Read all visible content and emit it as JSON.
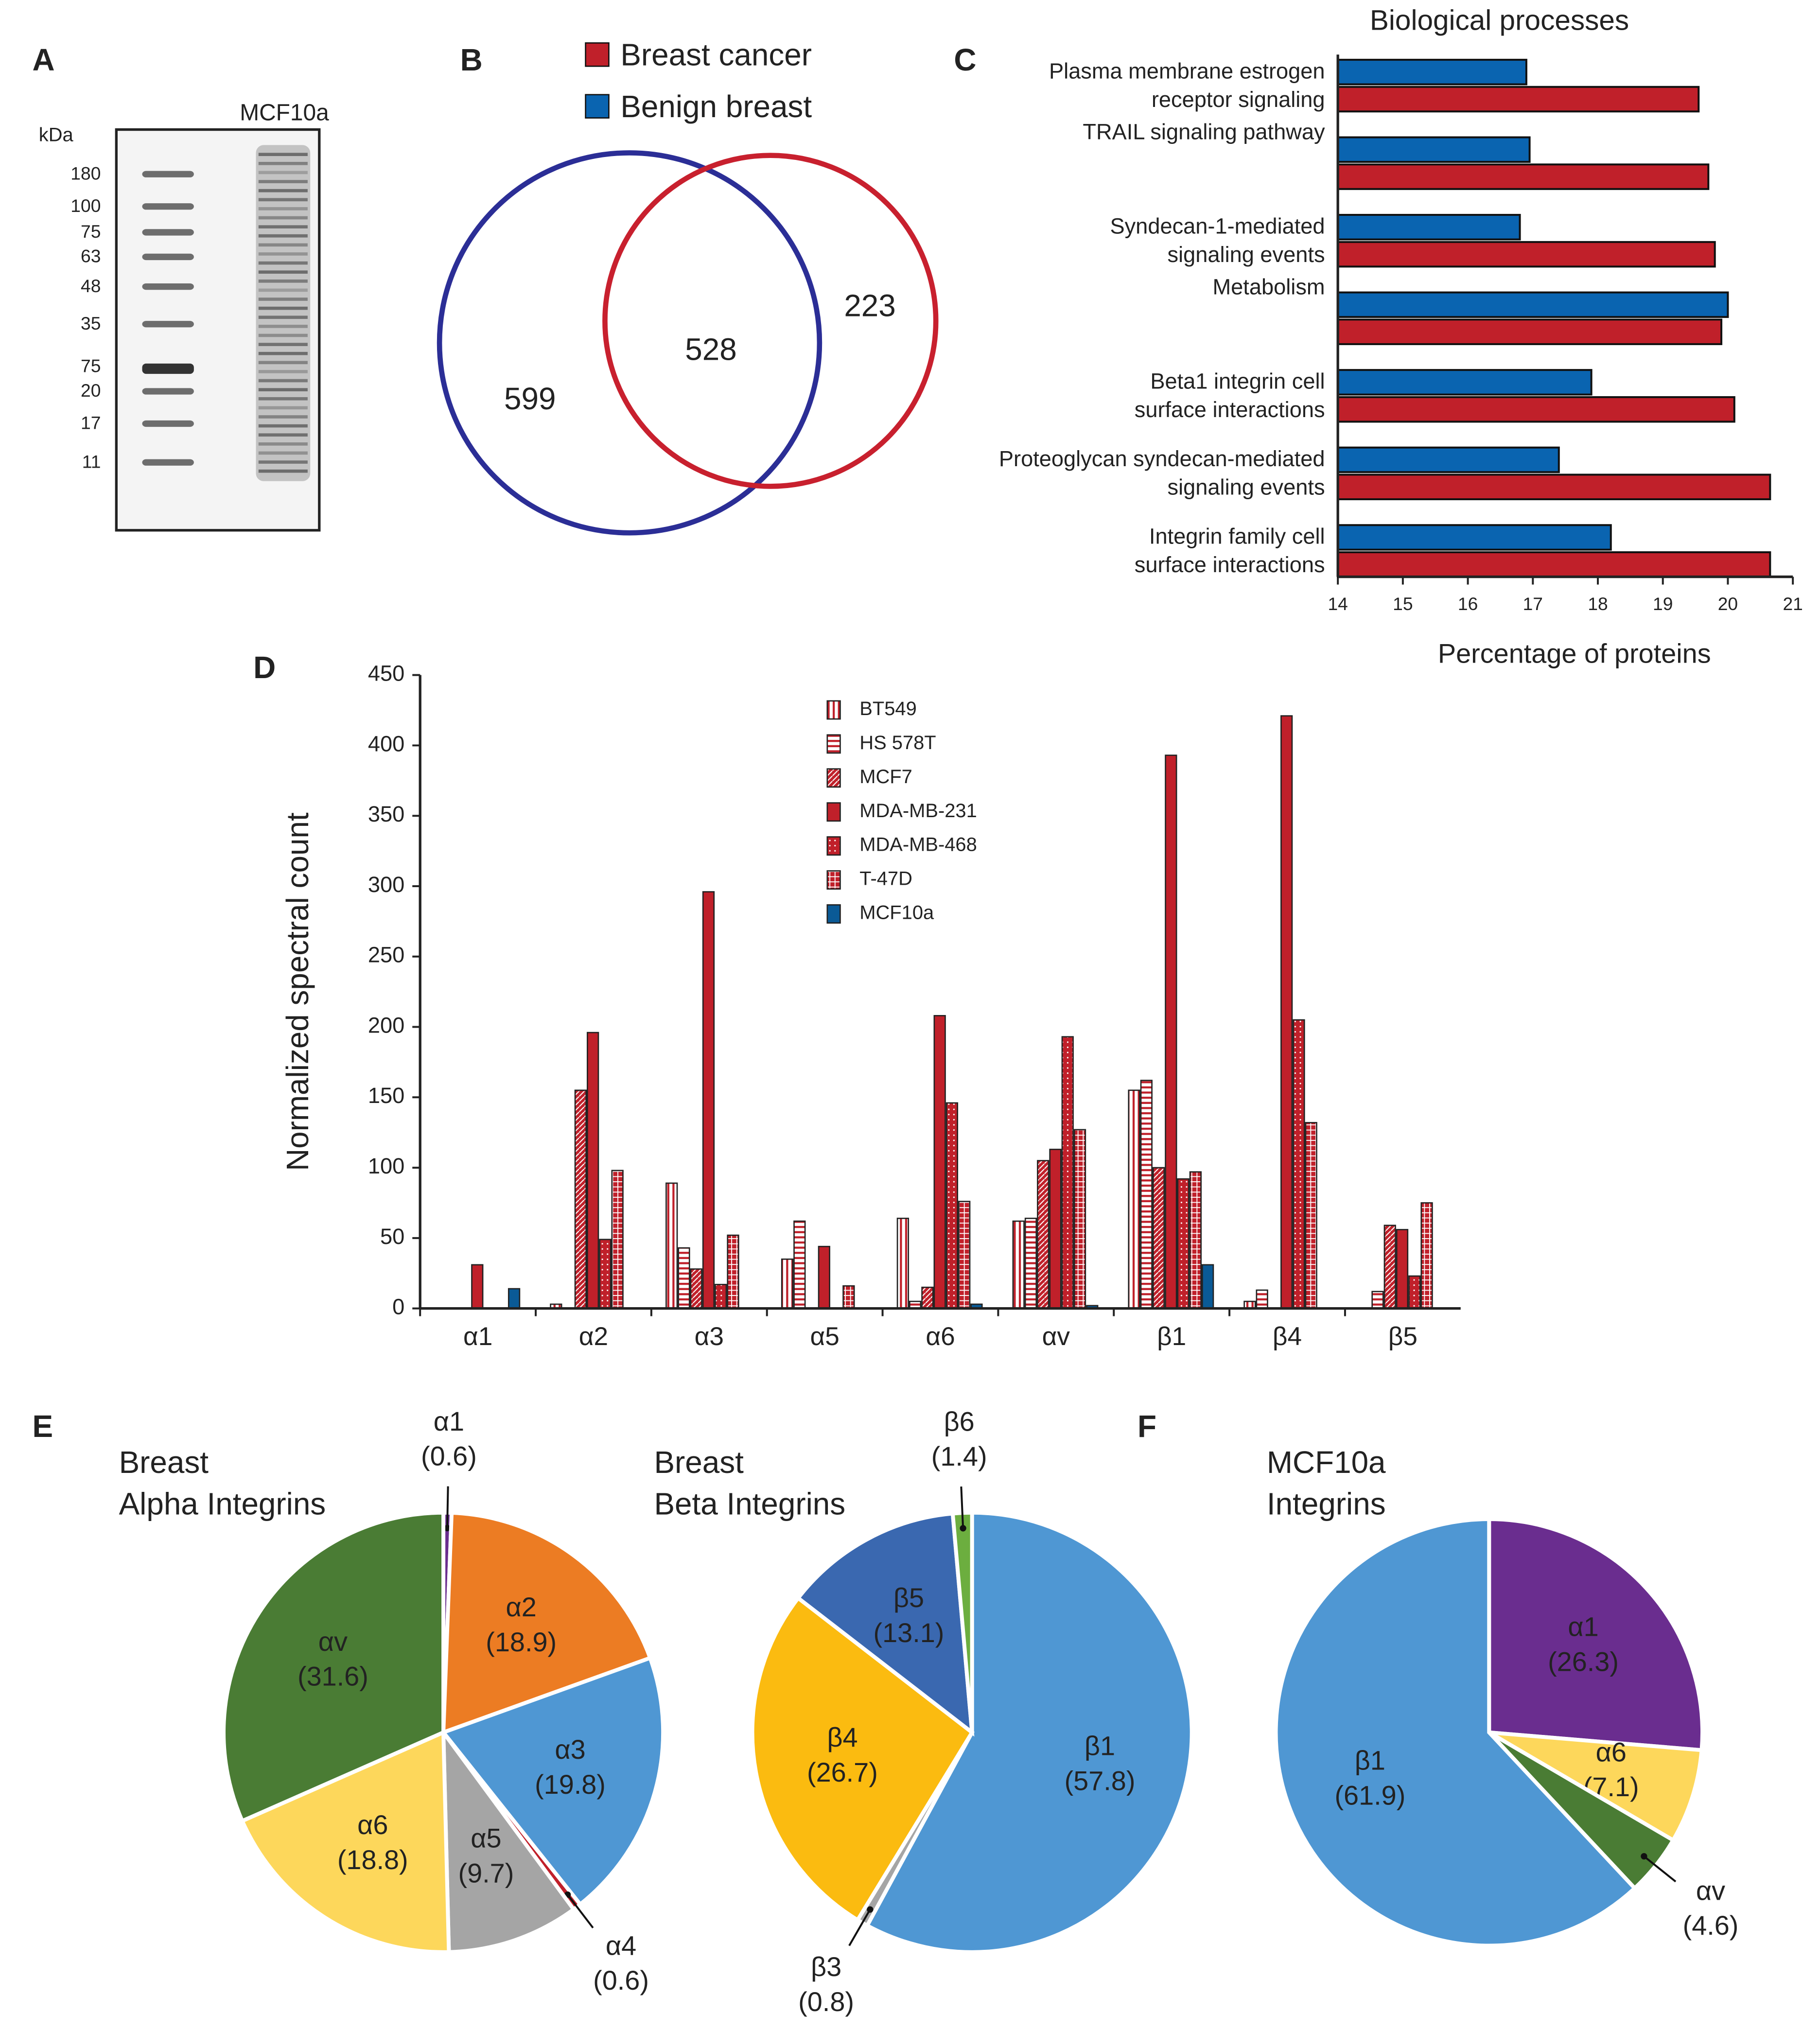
{
  "chart_data": [
    {
      "type": "gel",
      "panel": "A",
      "unit": "kDa",
      "lane_label": "MCF10a",
      "markers": [
        180,
        100,
        75,
        63,
        48,
        35,
        75,
        20,
        17,
        11
      ]
    },
    {
      "type": "venn",
      "panel": "B",
      "counts": [
        599,
        528,
        223
      ],
      "outlines": [
        "#2b2e96",
        "#c8202e"
      ]
    },
    {
      "type": "hbar",
      "panel": "C",
      "title": "Biological processes",
      "xlabel": "Percentage of proteins",
      "categories": [
        [
          "Plasma membrane estrogen",
          "receptor signaling"
        ],
        [
          "TRAIL signaling pathway"
        ],
        [
          "Syndecan-1-mediated",
          "signaling events"
        ],
        [
          "Metabolism"
        ],
        [
          "Beta1 integrin cell",
          "surface interactions"
        ],
        [
          "Proteoglycan syndecan-mediated",
          "signaling events"
        ],
        [
          "Integrin family cell",
          "surface interactions"
        ]
      ],
      "series": [
        {
          "name": "Benign breast",
          "color": "#0a64b0",
          "values": [
            16.9,
            16.95,
            16.8,
            20.0,
            17.9,
            17.4,
            18.2
          ]
        },
        {
          "name": "Breast cancer",
          "color": "#c0202a",
          "values": [
            19.55,
            19.7,
            19.8,
            19.9,
            20.1,
            20.65,
            20.65
          ]
        }
      ],
      "xlim": [
        14,
        21
      ],
      "xticks": [
        14,
        15,
        16,
        17,
        18,
        19,
        20,
        21
      ]
    },
    {
      "type": "bar",
      "panel": "D",
      "ylabel": "Normalized spectral count",
      "categories": [
        "α1",
        "α2",
        "α3",
        "α5",
        "α6",
        "αv",
        "β1",
        "β4",
        "β5"
      ],
      "series": [
        {
          "name": "BT549",
          "color": "#c0202a",
          "pattern": "vertical",
          "values": [
            0,
            3,
            89,
            35,
            64,
            62,
            155,
            5,
            0
          ]
        },
        {
          "name": "HS 578T",
          "color": "#c0202a",
          "pattern": "horizontal",
          "values": [
            0,
            0,
            43,
            62,
            5,
            64,
            162,
            13,
            12
          ]
        },
        {
          "name": "MCF7",
          "color": "#c0202a",
          "pattern": "diagonal",
          "values": [
            0,
            155,
            28,
            0,
            15,
            105,
            100,
            0,
            59
          ]
        },
        {
          "name": "MDA-MB-231",
          "color": "#c0202a",
          "pattern": "solid",
          "values": [
            31,
            196,
            296,
            44,
            208,
            113,
            393,
            421,
            56
          ]
        },
        {
          "name": "MDA-MB-468",
          "color": "#c0202a",
          "pattern": "dots",
          "values": [
            0,
            49,
            17,
            0,
            146,
            193,
            92,
            205,
            23
          ]
        },
        {
          "name": "T-47D",
          "color": "#c0202a",
          "pattern": "cross",
          "values": [
            0,
            98,
            52,
            16,
            76,
            127,
            97,
            132,
            75
          ]
        },
        {
          "name": "MCF10a",
          "color": "#0a5a96",
          "pattern": "solid",
          "values": [
            14,
            0,
            0,
            0,
            3,
            2,
            31,
            0,
            0
          ]
        }
      ],
      "ylim": [
        0,
        450
      ],
      "yticks": [
        0,
        50,
        100,
        150,
        200,
        250,
        300,
        350,
        400,
        450
      ]
    },
    {
      "type": "pie",
      "panel": "E",
      "title": [
        "Breast",
        "Alpha Integrins"
      ],
      "labels": [
        "α1",
        "α2",
        "α3",
        "α4",
        "α5",
        "α6",
        "αv"
      ],
      "values": [
        0.6,
        18.9,
        19.8,
        0.6,
        9.7,
        18.8,
        31.6
      ],
      "value_labels": [
        "(0.6)",
        "(18.9)",
        "(19.8)",
        "(0.6)",
        "(9.7)",
        "(18.8)",
        "(31.6)"
      ],
      "colors": [
        "#6a2d8f",
        "#ec7c23",
        "#4f97d3",
        "#c0202a",
        "#a5a5a5",
        "#fdd75b",
        "#4a7c34"
      ]
    },
    {
      "type": "pie",
      "title": [
        "Breast",
        "Beta Integrins"
      ],
      "labels": [
        "β1",
        "β3",
        "β4",
        "β5",
        "β6"
      ],
      "values": [
        57.8,
        0.8,
        26.7,
        13.1,
        1.4
      ],
      "value_labels": [
        "(57.8)",
        "(0.8)",
        "(26.7)",
        "(13.1)",
        "(1.4)"
      ],
      "colors": [
        "#4f97d3",
        "#a5a5a5",
        "#fbbb10",
        "#3a68b0",
        "#6cae3f"
      ]
    },
    {
      "type": "pie",
      "panel": "F",
      "title": [
        "MCF10a",
        "Integrins"
      ],
      "labels": [
        "α1",
        "α6",
        "αv",
        "β1"
      ],
      "values": [
        26.3,
        7.1,
        4.6,
        61.9
      ],
      "value_labels": [
        "(26.3)",
        "(7.1)",
        "(4.6)",
        "(61.9)"
      ],
      "colors": [
        "#6a2d8f",
        "#fdd75b",
        "#4a7c34",
        "#4f97d3"
      ]
    }
  ]
}
